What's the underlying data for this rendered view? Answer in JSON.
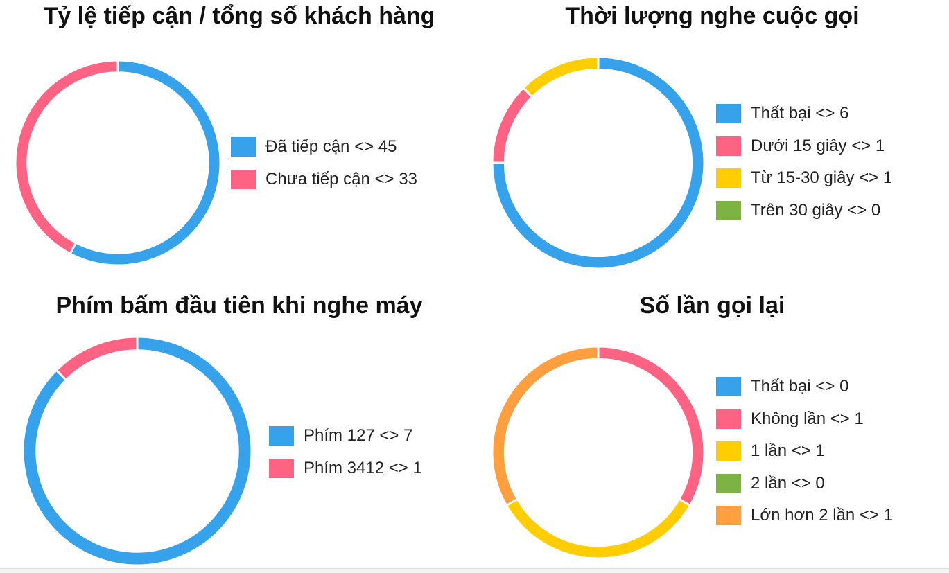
{
  "chart_data": [
    {
      "type": "doughnut",
      "title": "Tỷ lệ tiếp cận / tổng số khách hàng",
      "legend_position": "right",
      "categories": [
        "Đã tiếp cận",
        "Chưa tiếp cận"
      ],
      "values": [
        45,
        33
      ],
      "colors": [
        "#36A2EB",
        "#FF6384"
      ],
      "legend_labels": [
        "Đã tiếp cận <> 45",
        "Chưa tiếp cận <> 33"
      ]
    },
    {
      "type": "doughnut",
      "title": "Thời lượng nghe cuộc gọi",
      "legend_position": "right",
      "categories": [
        "Thất bại",
        "Dưới 15 giây",
        "Từ 15-30 giây",
        "Trên 30 giây"
      ],
      "values": [
        6,
        1,
        1,
        0
      ],
      "colors": [
        "#36A2EB",
        "#FF6384",
        "#FFCD00",
        "#7CB342"
      ],
      "legend_labels": [
        "Thất bại <> 6",
        "Dưới 15 giây <> 1",
        "Từ 15-30 giây <> 1",
        "Trên 30 giây <> 0"
      ]
    },
    {
      "type": "doughnut",
      "title": "Phím bấm đầu tiên khi nghe máy",
      "legend_position": "right",
      "categories": [
        "Phím 127",
        "Phím 3412"
      ],
      "values": [
        7,
        1
      ],
      "colors": [
        "#36A2EB",
        "#FF6384"
      ],
      "legend_labels": [
        "Phím 127 <> 7",
        "Phím 3412 <> 1"
      ]
    },
    {
      "type": "doughnut",
      "title": "Số lần gọi lại",
      "legend_position": "right",
      "categories": [
        "Thất bại",
        "Không lần",
        "1 lần",
        "2 lần",
        "Lớn hơn 2 lần"
      ],
      "values": [
        0,
        1,
        1,
        0,
        1
      ],
      "colors": [
        "#36A2EB",
        "#FF6384",
        "#FFCD00",
        "#7CB342",
        "#FF9F40"
      ],
      "legend_labels": [
        "Thất bại <> 0",
        "Không lần <> 1",
        "1 lần <> 1",
        "2 lần <> 0",
        "Lớn hơn 2 lần <> 1"
      ]
    }
  ]
}
